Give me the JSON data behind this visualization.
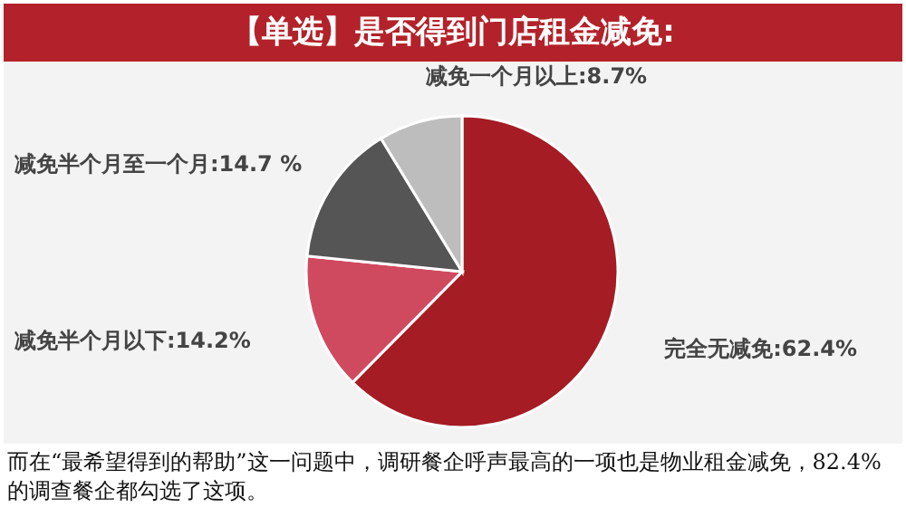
{
  "chart_data": {
    "type": "pie",
    "title": "【单选】是否得到门店租金减免:",
    "categories": [
      "完全无减免",
      "减免半个月以下",
      "减免半个月至一个月",
      "减免一个月以上"
    ],
    "values": [
      62.4,
      14.2,
      14.7,
      8.7
    ],
    "value_labels": [
      "62.4%",
      "14.2%",
      "14.7 %",
      "8.7%"
    ],
    "colors": [
      "#a51c24",
      "#d04a5f",
      "#555555",
      "#bdbdbd"
    ],
    "annotations": [
      "而在“最希望得到的帮助”这一问题中，调研餐企呼声最高的一项也是物业租金减免，82.4%的调查餐企都勾选了这项。"
    ]
  }
}
